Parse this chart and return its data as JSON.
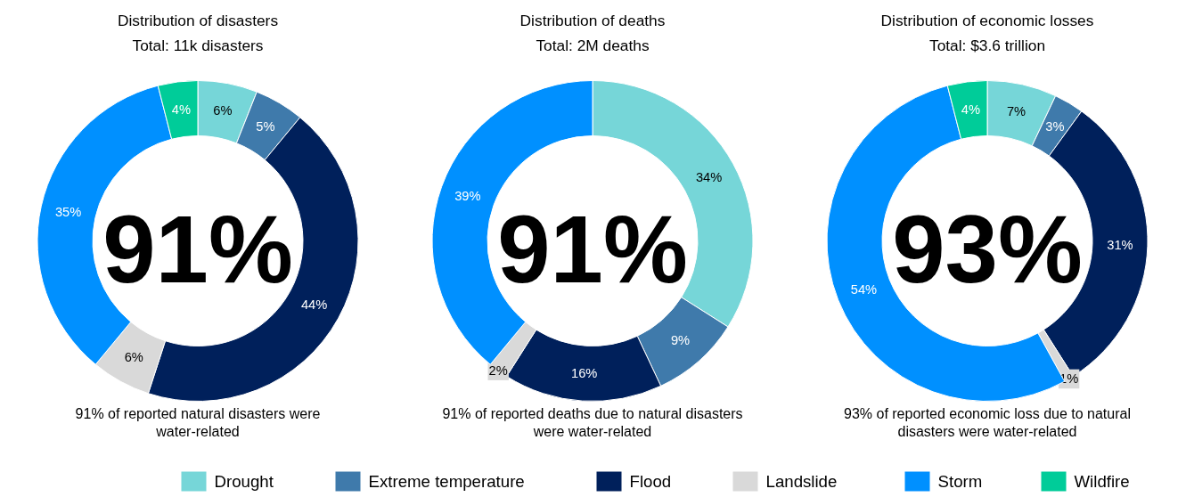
{
  "chart_data": [
    {
      "type": "donut",
      "title": "Distribution of disasters",
      "subtitle": "Total: 11k disasters",
      "categories": [
        "Drought",
        "Extreme temperature",
        "Flood",
        "Landslide",
        "Storm",
        "Wildfire"
      ],
      "values": [
        6,
        5,
        44,
        6,
        35,
        4
      ],
      "value_labels": [
        "6%",
        "5%",
        "44%",
        "6%",
        "35%",
        "4%"
      ],
      "colors": [
        "#76d6d8",
        "#3f7aab",
        "#00205b",
        "#d9d9d9",
        "#0090ff",
        "#00cc99"
      ],
      "legend": "bottom",
      "annotations": [
        "91%",
        "91% of reported natural disasters were\nwater-related"
      ]
    },
    {
      "type": "donut",
      "title": "Distribution of deaths",
      "subtitle": "Total: 2M deaths",
      "values": [
        34,
        9,
        16,
        2,
        39
      ],
      "value_labels": [
        "34%",
        "9%",
        "16%",
        "2%",
        "39%"
      ],
      "colors": [
        "#76d6d8",
        "#3f7aab",
        "#00205b",
        "#d9d9d9",
        "#0090ff"
      ],
      "annotations": [
        "91%",
        "91% of reported deaths due to natural disasters\nwere water-related"
      ]
    },
    {
      "type": "donut",
      "title": "Distribution of economic losses",
      "subtitle": "Total: $3.6 trillion",
      "values": [
        7,
        3,
        31,
        1,
        54,
        4
      ],
      "value_labels": [
        "7%",
        "3%",
        "31%",
        "1%",
        "54%",
        "4%"
      ],
      "colors": [
        "#76d6d8",
        "#3f7aab",
        "#00205b",
        "#d9d9d9",
        "#0090ff",
        "#00cc99"
      ],
      "annotations": [
        "93%",
        "93% of reported economic loss due to natural\ndisasters were water-related"
      ]
    }
  ]
}
